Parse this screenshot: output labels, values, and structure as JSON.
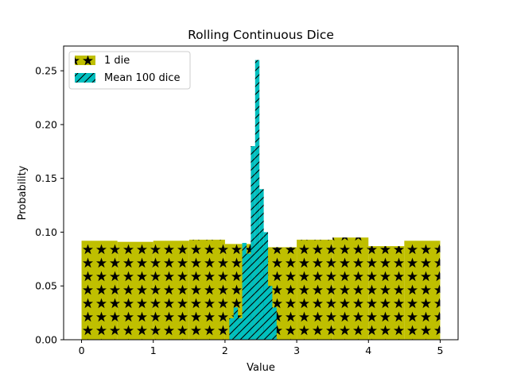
{
  "chart_data": {
    "type": "bar",
    "title": "Rolling Continuous Dice",
    "xlabel": "Value",
    "ylabel": "Probability",
    "xlim": [
      -0.25,
      5.25
    ],
    "ylim": [
      0,
      0.273
    ],
    "xticks": [
      "0",
      "1",
      "2",
      "3",
      "4",
      "5"
    ],
    "yticks": [
      "0.00",
      "0.05",
      "0.10",
      "0.15",
      "0.20",
      "0.25"
    ],
    "grid": false,
    "legend": "top-left",
    "series": [
      {
        "name": "1 die",
        "color": "#bfbf00",
        "hatch": "stars",
        "bin_width": 0.5,
        "bins": [
          {
            "x": 0.0,
            "y": 0.092
          },
          {
            "x": 0.5,
            "y": 0.091
          },
          {
            "x": 1.0,
            "y": 0.092
          },
          {
            "x": 1.5,
            "y": 0.093
          },
          {
            "x": 2.0,
            "y": 0.089
          },
          {
            "x": 2.5,
            "y": 0.086
          },
          {
            "x": 3.0,
            "y": 0.093
          },
          {
            "x": 3.5,
            "y": 0.095
          },
          {
            "x": 4.0,
            "y": 0.087
          },
          {
            "x": 4.5,
            "y": 0.092
          }
        ]
      },
      {
        "name": "Mean 100 dice",
        "color": "#00bfbf",
        "hatch": "diagonal",
        "bin_width": 0.06,
        "bins": [
          {
            "x": 2.06,
            "y": 0.02
          },
          {
            "x": 2.12,
            "y": 0.03
          },
          {
            "x": 2.18,
            "y": 0.02
          },
          {
            "x": 2.24,
            "y": 0.09
          },
          {
            "x": 2.3,
            "y": 0.08
          },
          {
            "x": 2.36,
            "y": 0.18
          },
          {
            "x": 2.42,
            "y": 0.26
          },
          {
            "x": 2.48,
            "y": 0.14
          },
          {
            "x": 2.54,
            "y": 0.1
          },
          {
            "x": 2.6,
            "y": 0.05
          },
          {
            "x": 2.66,
            "y": 0.03
          }
        ]
      }
    ]
  }
}
